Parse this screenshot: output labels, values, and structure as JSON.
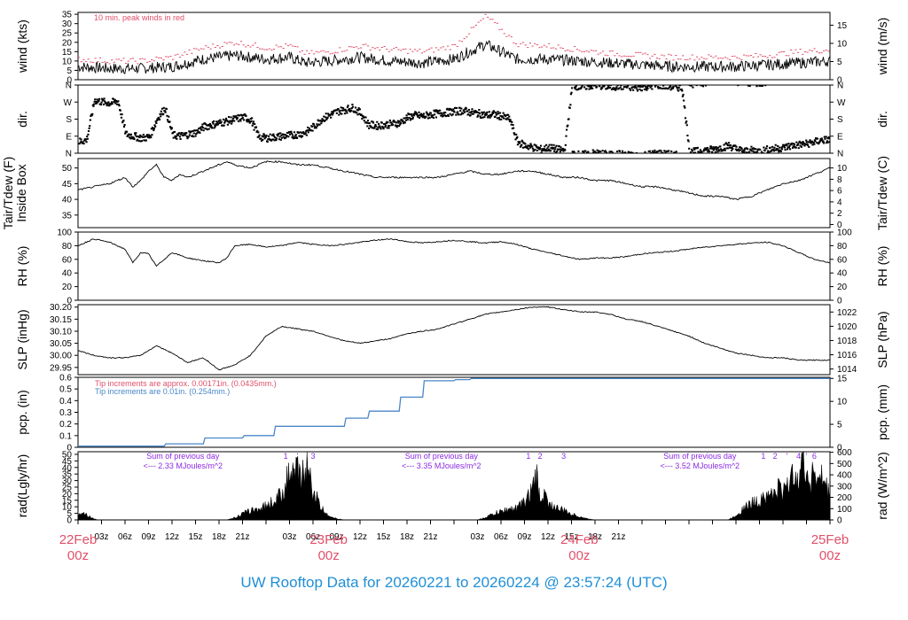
{
  "page_title": "UW Rooftop Data for 20260221  to  20260224 @ 23:57:24  (UTC)",
  "colors": {
    "title": "#1f8fd6",
    "date_label": "#e0506a",
    "peak_wind": "#e0506a",
    "precip_red": "#e0506a",
    "precip_blue": "#4a86c8",
    "radiation_note": "#8a2be2",
    "trace": "#000000"
  },
  "time_axis": {
    "hours_total": 96,
    "tick_labels": [
      "03z",
      "06z",
      "09z",
      "12z",
      "15z",
      "18z",
      "21z",
      "",
      "03z",
      "06z",
      "09z",
      "12z",
      "15z",
      "18z",
      "21z",
      "",
      "03z",
      "06z",
      "09z",
      "12z",
      "15z",
      "18z",
      "21z"
    ],
    "day_labels": [
      {
        "date": "22Feb",
        "time": "00z",
        "hour": 0
      },
      {
        "date": "23Feb",
        "time": "00z",
        "hour": 32
      },
      {
        "date": "24Feb",
        "time": "00z",
        "hour": 64
      },
      {
        "date": "25Feb",
        "time": "00z",
        "hour": 96
      }
    ]
  },
  "chart_data": [
    {
      "type": "line",
      "name": "wind",
      "ylabel_left": "wind (kts)",
      "ylabel_right": "wind (m/s)",
      "ylim": [
        0,
        36
      ],
      "left_ticks": [
        "0",
        "5",
        "10",
        "15",
        "20",
        "25",
        "30",
        "35"
      ],
      "right_ticks": [
        "0",
        "5",
        "10",
        "15"
      ],
      "annotation": "10 min. peak winds in red",
      "series": [
        {
          "x_hours": [
            0,
            4,
            8,
            12,
            16,
            20,
            24,
            27,
            29,
            32,
            36,
            40,
            44,
            48,
            52,
            56,
            60,
            64,
            68,
            72,
            76,
            80,
            84,
            88,
            92,
            96
          ],
          "values": [
            7,
            6,
            6,
            7,
            11,
            13,
            11,
            12,
            9,
            10,
            12,
            10,
            9,
            11,
            19,
            11,
            11,
            10,
            9,
            8,
            7,
            7,
            7,
            8,
            9,
            10
          ]
        },
        {
          "name": "peak",
          "x_hours": [
            0,
            4,
            8,
            12,
            16,
            20,
            24,
            27,
            29,
            32,
            36,
            40,
            44,
            48,
            52,
            56,
            60,
            64,
            68,
            72,
            76,
            80,
            84,
            88,
            92,
            96
          ],
          "values": [
            11,
            10,
            10,
            12,
            17,
            20,
            17,
            18,
            14,
            15,
            18,
            16,
            15,
            18,
            34,
            19,
            18,
            16,
            14,
            13,
            12,
            12,
            12,
            13,
            15,
            16
          ]
        }
      ]
    },
    {
      "type": "scatter",
      "name": "direction",
      "ylabel_left": "dir.",
      "ylabel_right": "dir.",
      "left_ticks": [
        "N",
        "E",
        "S",
        "W",
        "N"
      ],
      "right_ticks": [
        "N",
        "E",
        "S",
        "W",
        "N"
      ],
      "ylim": [
        0,
        360
      ],
      "x_hours": [
        0,
        1,
        2,
        3,
        4,
        5,
        6,
        7,
        8,
        9,
        10,
        11,
        12,
        13,
        14,
        15,
        16,
        17,
        18,
        19,
        20,
        21,
        22,
        23,
        24,
        25,
        26,
        27,
        28,
        29,
        30,
        31,
        32,
        33,
        34,
        35,
        36,
        37,
        38,
        39,
        40,
        41,
        42,
        43,
        44,
        45,
        46,
        47,
        48,
        49,
        50,
        51,
        52,
        53,
        54,
        55,
        56,
        57,
        58,
        59,
        60,
        61,
        62,
        63,
        64,
        65,
        66,
        67,
        68,
        69,
        70,
        71,
        72,
        73,
        74,
        75,
        76,
        77,
        78,
        79,
        80,
        81,
        82,
        83,
        84,
        85,
        86,
        87,
        88,
        89,
        90,
        91,
        92,
        93,
        94,
        95
      ],
      "values": [
        60,
        70,
        280,
        270,
        265,
        275,
        100,
        90,
        80,
        85,
        180,
        240,
        95,
        90,
        100,
        110,
        140,
        150,
        160,
        170,
        180,
        190,
        175,
        85,
        80,
        85,
        90,
        95,
        100,
        110,
        140,
        180,
        200,
        220,
        230,
        240,
        210,
        150,
        145,
        150,
        155,
        160,
        190,
        200,
        195,
        205,
        210,
        215,
        220,
        225,
        215,
        210,
        200,
        205,
        195,
        180,
        60,
        40,
        30,
        20,
        30,
        20,
        15,
        360,
        350,
        355,
        360,
        355,
        350,
        355,
        350,
        345,
        350,
        355,
        360,
        355,
        350,
        345,
        5,
        10,
        15,
        20,
        30,
        40,
        20,
        10,
        15,
        10,
        20,
        25,
        30,
        40,
        45,
        50,
        60,
        70
      ]
    },
    {
      "type": "line",
      "name": "temperature",
      "ylabel_left": "Tair/Tdew (F)\nInside Box",
      "ylabel_right": "Tair/Tdew (C)",
      "ylim": [
        31,
        53
      ],
      "left_ticks": [
        "35",
        "40",
        "45",
        "50"
      ],
      "right_ticks": [
        "0",
        "2",
        "4",
        "6",
        "8",
        "10"
      ],
      "x_hours": [
        0,
        2,
        4,
        6,
        7,
        8,
        9,
        10,
        11,
        12,
        13,
        14,
        16,
        18,
        19,
        20,
        22,
        24,
        26,
        28,
        30,
        32,
        34,
        36,
        38,
        40,
        42,
        44,
        46,
        48,
        50,
        52,
        54,
        56,
        58,
        60,
        62,
        64,
        66,
        68,
        70,
        72,
        74,
        76,
        78,
        80,
        82,
        84,
        86,
        88,
        90,
        92,
        94,
        96
      ],
      "values": [
        43,
        44,
        45,
        47,
        44,
        46,
        49,
        51,
        47,
        46,
        48,
        47,
        49,
        51,
        52,
        51,
        50,
        52,
        52,
        51,
        51,
        50,
        49,
        48,
        47,
        47,
        47,
        47,
        47,
        48,
        49,
        48,
        48,
        49,
        49,
        48,
        47,
        47,
        46,
        46,
        45,
        44,
        44,
        43,
        42,
        41,
        41,
        40,
        41,
        43,
        45,
        46,
        48,
        50
      ]
    },
    {
      "type": "line",
      "name": "humidity",
      "ylabel_left": "RH (%)",
      "ylabel_right": "RH (%)",
      "ylim": [
        0,
        100
      ],
      "left_ticks": [
        "0",
        "20",
        "40",
        "60",
        "80",
        "100"
      ],
      "right_ticks": [
        "0",
        "20",
        "40",
        "60",
        "80",
        "100"
      ],
      "x_hours": [
        0,
        2,
        4,
        6,
        7,
        8,
        9,
        10,
        12,
        14,
        16,
        18,
        19,
        20,
        22,
        24,
        26,
        28,
        30,
        32,
        34,
        36,
        38,
        40,
        42,
        44,
        46,
        48,
        50,
        52,
        54,
        56,
        58,
        60,
        62,
        64,
        66,
        68,
        70,
        72,
        74,
        76,
        78,
        80,
        82,
        84,
        86,
        88,
        90,
        92,
        94,
        96
      ],
      "values": [
        80,
        90,
        85,
        75,
        55,
        70,
        68,
        50,
        70,
        62,
        58,
        55,
        62,
        80,
        82,
        78,
        80,
        85,
        82,
        80,
        82,
        85,
        88,
        90,
        86,
        84,
        86,
        88,
        86,
        84,
        86,
        82,
        75,
        70,
        65,
        60,
        62,
        62,
        64,
        68,
        70,
        72,
        75,
        78,
        80,
        82,
        84,
        85,
        80,
        70,
        60,
        55
      ]
    },
    {
      "type": "line",
      "name": "pressure",
      "ylabel_left": "SLP (inHg)",
      "ylabel_right": "SLP (hPa)",
      "ylim": [
        29.92,
        30.21
      ],
      "left_ticks": [
        "29.95",
        "30.00",
        "30.05",
        "30.10",
        "30.15",
        "30.20"
      ],
      "right_ticks": [
        "1014",
        "1016",
        "1018",
        "1020",
        "1022"
      ],
      "x_hours": [
        0,
        2,
        4,
        6,
        8,
        10,
        12,
        14,
        16,
        18,
        20,
        22,
        24,
        26,
        28,
        30,
        32,
        34,
        36,
        38,
        40,
        42,
        44,
        46,
        48,
        50,
        52,
        54,
        56,
        58,
        60,
        62,
        64,
        66,
        68,
        70,
        72,
        74,
        76,
        78,
        80,
        82,
        84,
        86,
        88,
        90,
        92,
        94,
        96
      ],
      "values": [
        30.02,
        30.0,
        29.99,
        29.99,
        30.0,
        30.04,
        30.01,
        29.97,
        29.99,
        29.94,
        29.96,
        30.0,
        30.08,
        30.12,
        30.11,
        30.1,
        30.08,
        30.06,
        30.05,
        30.06,
        30.07,
        30.09,
        30.1,
        30.11,
        30.13,
        30.15,
        30.17,
        30.18,
        30.19,
        30.2,
        30.2,
        30.19,
        30.18,
        30.18,
        30.17,
        30.15,
        30.14,
        30.12,
        30.1,
        30.08,
        30.05,
        30.03,
        30.01,
        30.0,
        29.99,
        29.99,
        29.98,
        29.98,
        29.98
      ]
    },
    {
      "type": "area",
      "name": "precipitation",
      "ylabel_left": "pcp. (in)",
      "ylabel_right": "pcp. (mm)",
      "ylim": [
        0,
        0.6
      ],
      "left_ticks": [
        "0",
        "0.1",
        "0.2",
        "0.3",
        "0.4",
        "0.5",
        "0.6"
      ],
      "right_ticks": [
        "0",
        "5",
        "10",
        "15"
      ],
      "annotations": [
        "Tip increments are approx. 0.00171in. (0.0435mm.)",
        "Tip increments are 0.01in. (0.254mm.)"
      ],
      "x_hours": [
        0,
        11,
        11.2,
        16,
        16.2,
        21,
        21.2,
        25,
        25.2,
        34,
        34.2,
        37,
        37.2,
        41,
        41.2,
        44,
        44.2,
        48,
        48.2,
        50,
        50.2,
        96
      ],
      "values": [
        0.01,
        0.01,
        0.03,
        0.03,
        0.08,
        0.08,
        0.1,
        0.1,
        0.18,
        0.18,
        0.25,
        0.25,
        0.31,
        0.31,
        0.43,
        0.43,
        0.57,
        0.57,
        0.58,
        0.58,
        0.59,
        0.59
      ]
    },
    {
      "type": "area",
      "name": "radiation",
      "ylabel_left": "rad(Lgly/hr)",
      "ylabel_right": "rad (W/m^2)",
      "ylim": [
        0,
        52
      ],
      "left_ticks": [
        "0",
        "5",
        "10",
        "15",
        "20",
        "25",
        "30",
        "35",
        "40",
        "45",
        "50"
      ],
      "right_ticks": [
        "0",
        "100",
        "200",
        "300",
        "400",
        "500",
        "600"
      ],
      "annotations": [
        {
          "text": "Sum of previous day",
          "sub": "<--- 2.33 MJoules/m^2",
          "hour": 10
        },
        {
          "text": "Sum of previous day",
          "sub": "<--- 3.35 MJoules/m^2",
          "hour": 43
        },
        {
          "text": "Sum of previous day",
          "sub": "<--- 3.52 MJoules/m^2",
          "hour": 76
        }
      ],
      "marker_labels": [
        {
          "text": "1",
          "hour": 26.5
        },
        {
          "text": "'",
          "hour": 28
        },
        {
          "text": "3",
          "hour": 30
        },
        {
          "text": "1",
          "hour": 57.5
        },
        {
          "text": "2",
          "hour": 59
        },
        {
          "text": "3",
          "hour": 62
        },
        {
          "text": "1",
          "hour": 87.5
        },
        {
          "text": "2",
          "hour": 89
        },
        {
          "text": "'",
          "hour": 90.5
        },
        {
          "text": "4",
          "hour": 92
        },
        {
          "text": "'",
          "hour": 93
        },
        {
          "text": "6",
          "hour": 94
        }
      ],
      "x_hours": [
        0,
        0.5,
        1,
        1.5,
        2,
        2.5,
        19,
        20,
        21,
        22,
        23,
        24,
        25,
        26,
        26.5,
        27,
        27.5,
        28,
        28.5,
        29,
        29.5,
        30,
        30.5,
        31,
        32,
        33,
        34,
        51,
        52,
        53,
        54,
        55,
        56,
        57,
        57.5,
        58,
        58.5,
        59,
        59.5,
        60,
        61,
        62,
        63,
        64,
        65,
        66,
        83,
        84,
        85,
        86,
        87,
        87.5,
        88,
        88.5,
        89,
        89.5,
        90,
        90.5,
        91,
        91.5,
        92,
        92.5,
        93,
        93.5,
        94,
        94.5,
        95,
        95.5,
        96
      ],
      "values": [
        6,
        7,
        5,
        3,
        1,
        0,
        0,
        2,
        5,
        8,
        9,
        12,
        16,
        22,
        30,
        40,
        34,
        44,
        30,
        52,
        36,
        26,
        18,
        10,
        4,
        1,
        0,
        0,
        2,
        5,
        7,
        9,
        10,
        15,
        20,
        25,
        38,
        18,
        22,
        14,
        10,
        8,
        5,
        3,
        1,
        0,
        0,
        4,
        10,
        14,
        16,
        22,
        18,
        25,
        20,
        28,
        22,
        35,
        30,
        44,
        38,
        50,
        40,
        32,
        45,
        30,
        36,
        28,
        20
      ]
    }
  ]
}
